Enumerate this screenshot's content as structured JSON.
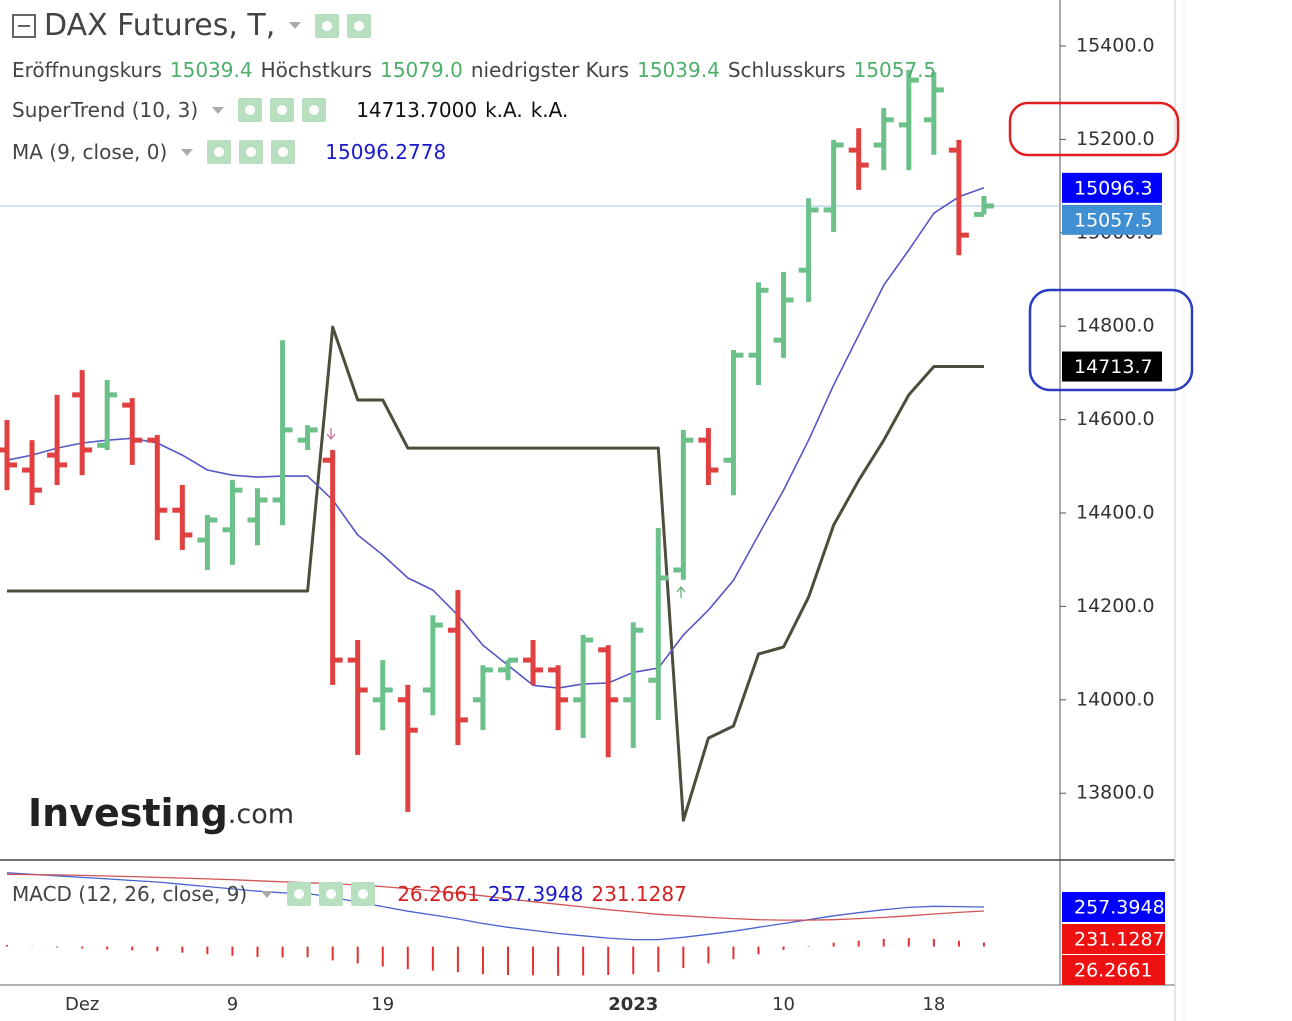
{
  "chart_data": [
    {
      "type": "ohlc",
      "title": "DAX Futures, T,",
      "readouts": [
        {
          "name": "Eröffnungskurs",
          "label": "15039.4"
        },
        {
          "name": "Höchstkurs",
          "label": "15079.0"
        },
        {
          "name": "niedrigster Kurs",
          "label": "15039.4"
        },
        {
          "name": "Schlusskurs",
          "label": "15057.5"
        }
      ],
      "categories": [
        null,
        null,
        null,
        "Dez",
        null,
        null,
        null,
        null,
        null,
        "9",
        null,
        null,
        null,
        null,
        null,
        "19",
        null,
        null,
        null,
        null,
        null,
        null,
        null,
        null,
        null,
        "2023",
        null,
        null,
        null,
        null,
        null,
        "10",
        null,
        null,
        null,
        null,
        null,
        "18",
        null,
        null
      ],
      "open": [
        14535,
        14492,
        14524,
        14653,
        14545,
        14631,
        14556,
        14406,
        14342,
        14364,
        14385,
        14428,
        14556,
        14513,
        14085,
        14000,
        14000,
        14021,
        14149,
        14000,
        14064,
        14085,
        14064,
        14000,
        14107,
        14000,
        14042,
        14278,
        14556,
        14513,
        14738,
        14770,
        14920,
        15049,
        15177,
        15188,
        15231,
        15242,
        15177,
        15039.4
      ],
      "high": [
        14599,
        14556,
        14653,
        14706,
        14685,
        14646,
        14567,
        14460,
        14396,
        14471,
        14453,
        14770,
        14588,
        14535,
        14128,
        14085,
        14032,
        14181,
        14235,
        14074,
        14085,
        14128,
        14074,
        14139,
        14117,
        14166,
        14368,
        14578,
        14582,
        14749,
        14894,
        14916,
        15074,
        15199,
        15224,
        15267,
        15349,
        15344,
        15199,
        15079
      ],
      "low": [
        14449,
        14417,
        14460,
        14481,
        14535,
        14503,
        14342,
        14321,
        14278,
        14289,
        14331,
        14374,
        14535,
        14032,
        13882,
        13935,
        13760,
        13967,
        13903,
        13935,
        14042,
        14032,
        13935,
        13918,
        13877,
        13897,
        13957,
        14257,
        14460,
        14438,
        14674,
        14732,
        14852,
        15002,
        15092,
        15134,
        15134,
        15167,
        14952,
        15039.4
      ],
      "close": [
        14503,
        14449,
        14503,
        14535,
        14653,
        14556,
        14406,
        14353,
        14385,
        14449,
        14428,
        14578,
        14578,
        14085,
        14021,
        14021,
        13935,
        14160,
        13957,
        14064,
        14085,
        14064,
        14000,
        14128,
        14000,
        14149,
        14261,
        14556,
        14492,
        14738,
        14877,
        14856,
        15049,
        15188,
        15145,
        15242,
        15327,
        15306,
        14995,
        15057.5
      ],
      "up_color": "#6cc08a",
      "down_color": "#e0403f",
      "close_label": "15057.5",
      "close_label_bg": "#3f8fd2",
      "overlays": [
        {
          "name": "SuperTrend (10, 3)",
          "color": "#4d4d3c",
          "width": 3,
          "values": [
            14233,
            14233,
            14233,
            14233,
            14233,
            14233,
            14233,
            14233,
            14233,
            14233,
            14233,
            14233,
            14233,
            14798,
            14642,
            14642,
            14539,
            14539,
            14539,
            14539,
            14539,
            14539,
            14539,
            14539,
            14539,
            14539,
            14539,
            13742,
            13918,
            13944,
            14098,
            14113,
            14220,
            14374,
            14470,
            14556,
            14653,
            14713.7,
            14713.7,
            14713.7
          ],
          "legend_labels": [
            "14713.7000",
            "k.A.",
            "k.A."
          ],
          "legend_color": "#111111",
          "last_label": "14713.7",
          "label_bg": "#000000"
        },
        {
          "name": "MA (9, close, 0)",
          "color": "#5656c4",
          "width": 1.6,
          "values": [
            14513,
            14524,
            14539,
            14550,
            14556,
            14560,
            14550,
            14524,
            14492,
            14481,
            14477,
            14479,
            14479,
            14428,
            14353,
            14310,
            14261,
            14235,
            14181,
            14117,
            14074,
            14031,
            14025,
            14034,
            14036,
            14059,
            14068,
            14139,
            14192,
            14256,
            14353,
            14449,
            14556,
            14674,
            14781,
            14888,
            14963,
            15042,
            15077,
            15096.2778
          ],
          "legend_labels": [
            "15096.2778"
          ],
          "legend_color": "#1a1acc",
          "last_label": "15096.3",
          "label_bg": "#0000ff"
        }
      ],
      "ylim": [
        13657,
        15498.5
      ],
      "yticks": [
        {
          "value": 13800,
          "label": "13800.0"
        },
        {
          "value": 14000,
          "label": "14000.0"
        },
        {
          "value": 14200,
          "label": "14200.0"
        },
        {
          "value": 14400,
          "label": "14400.0"
        },
        {
          "value": 14600,
          "label": "14600.0"
        },
        {
          "value": 14800,
          "label": "14800.0"
        },
        {
          "value": 15000,
          "label": "15000.0"
        },
        {
          "value": 15200,
          "label": "15200.0"
        },
        {
          "value": 15400,
          "label": "15400.0"
        }
      ],
      "watermark": [
        "Investing",
        ".com"
      ]
    },
    {
      "type": "macd",
      "name": "MACD (12, 26, close, 9)",
      "histogram": {
        "color": "#e0302f",
        "legend_color": "#d42020",
        "label_bg": "#ee1111",
        "last_label": "26.2661",
        "values": [
          10,
          2,
          -6,
          -13,
          -19,
          -25,
          -30,
          -40,
          -50,
          -60,
          -68,
          -71,
          -70,
          -90,
          -110,
          -130,
          -147,
          -157,
          -167,
          -180,
          -185,
          -187,
          -190,
          -188,
          -185,
          -180,
          -165,
          -140,
          -110,
          -82,
          -50,
          -22,
          3,
          25,
          38,
          50,
          55,
          50,
          38,
          26.2661
        ]
      },
      "series": [
        {
          "color": "#4a63d0",
          "legend_color": "#1a1acc",
          "label_bg": "#0000ff",
          "last_label": "257.3948",
          "values": [
            480,
            470,
            460,
            450,
            440,
            430,
            420,
            405,
            390,
            375,
            360,
            350,
            345,
            320,
            290,
            260,
            230,
            205,
            180,
            150,
            125,
            105,
            85,
            70,
            55,
            45,
            45,
            60,
            80,
            100,
            125,
            150,
            175,
            200,
            220,
            240,
            255,
            262,
            260,
            257.3948
          ]
        },
        {
          "color": "#d05555",
          "legend_color": "#d42020",
          "label_bg": "#ee1111",
          "last_label": "231.1287",
          "values": [
            470,
            468,
            466,
            463,
            459,
            455,
            450,
            445,
            440,
            435,
            428,
            421,
            415,
            410,
            400,
            390,
            377,
            362,
            347,
            330,
            310,
            292,
            275,
            258,
            240,
            225,
            210,
            200,
            190,
            182,
            175,
            172,
            172,
            175,
            182,
            190,
            200,
            212,
            222,
            231.1287
          ]
        }
      ],
      "ylim": [
        -250,
        550
      ]
    }
  ]
}
